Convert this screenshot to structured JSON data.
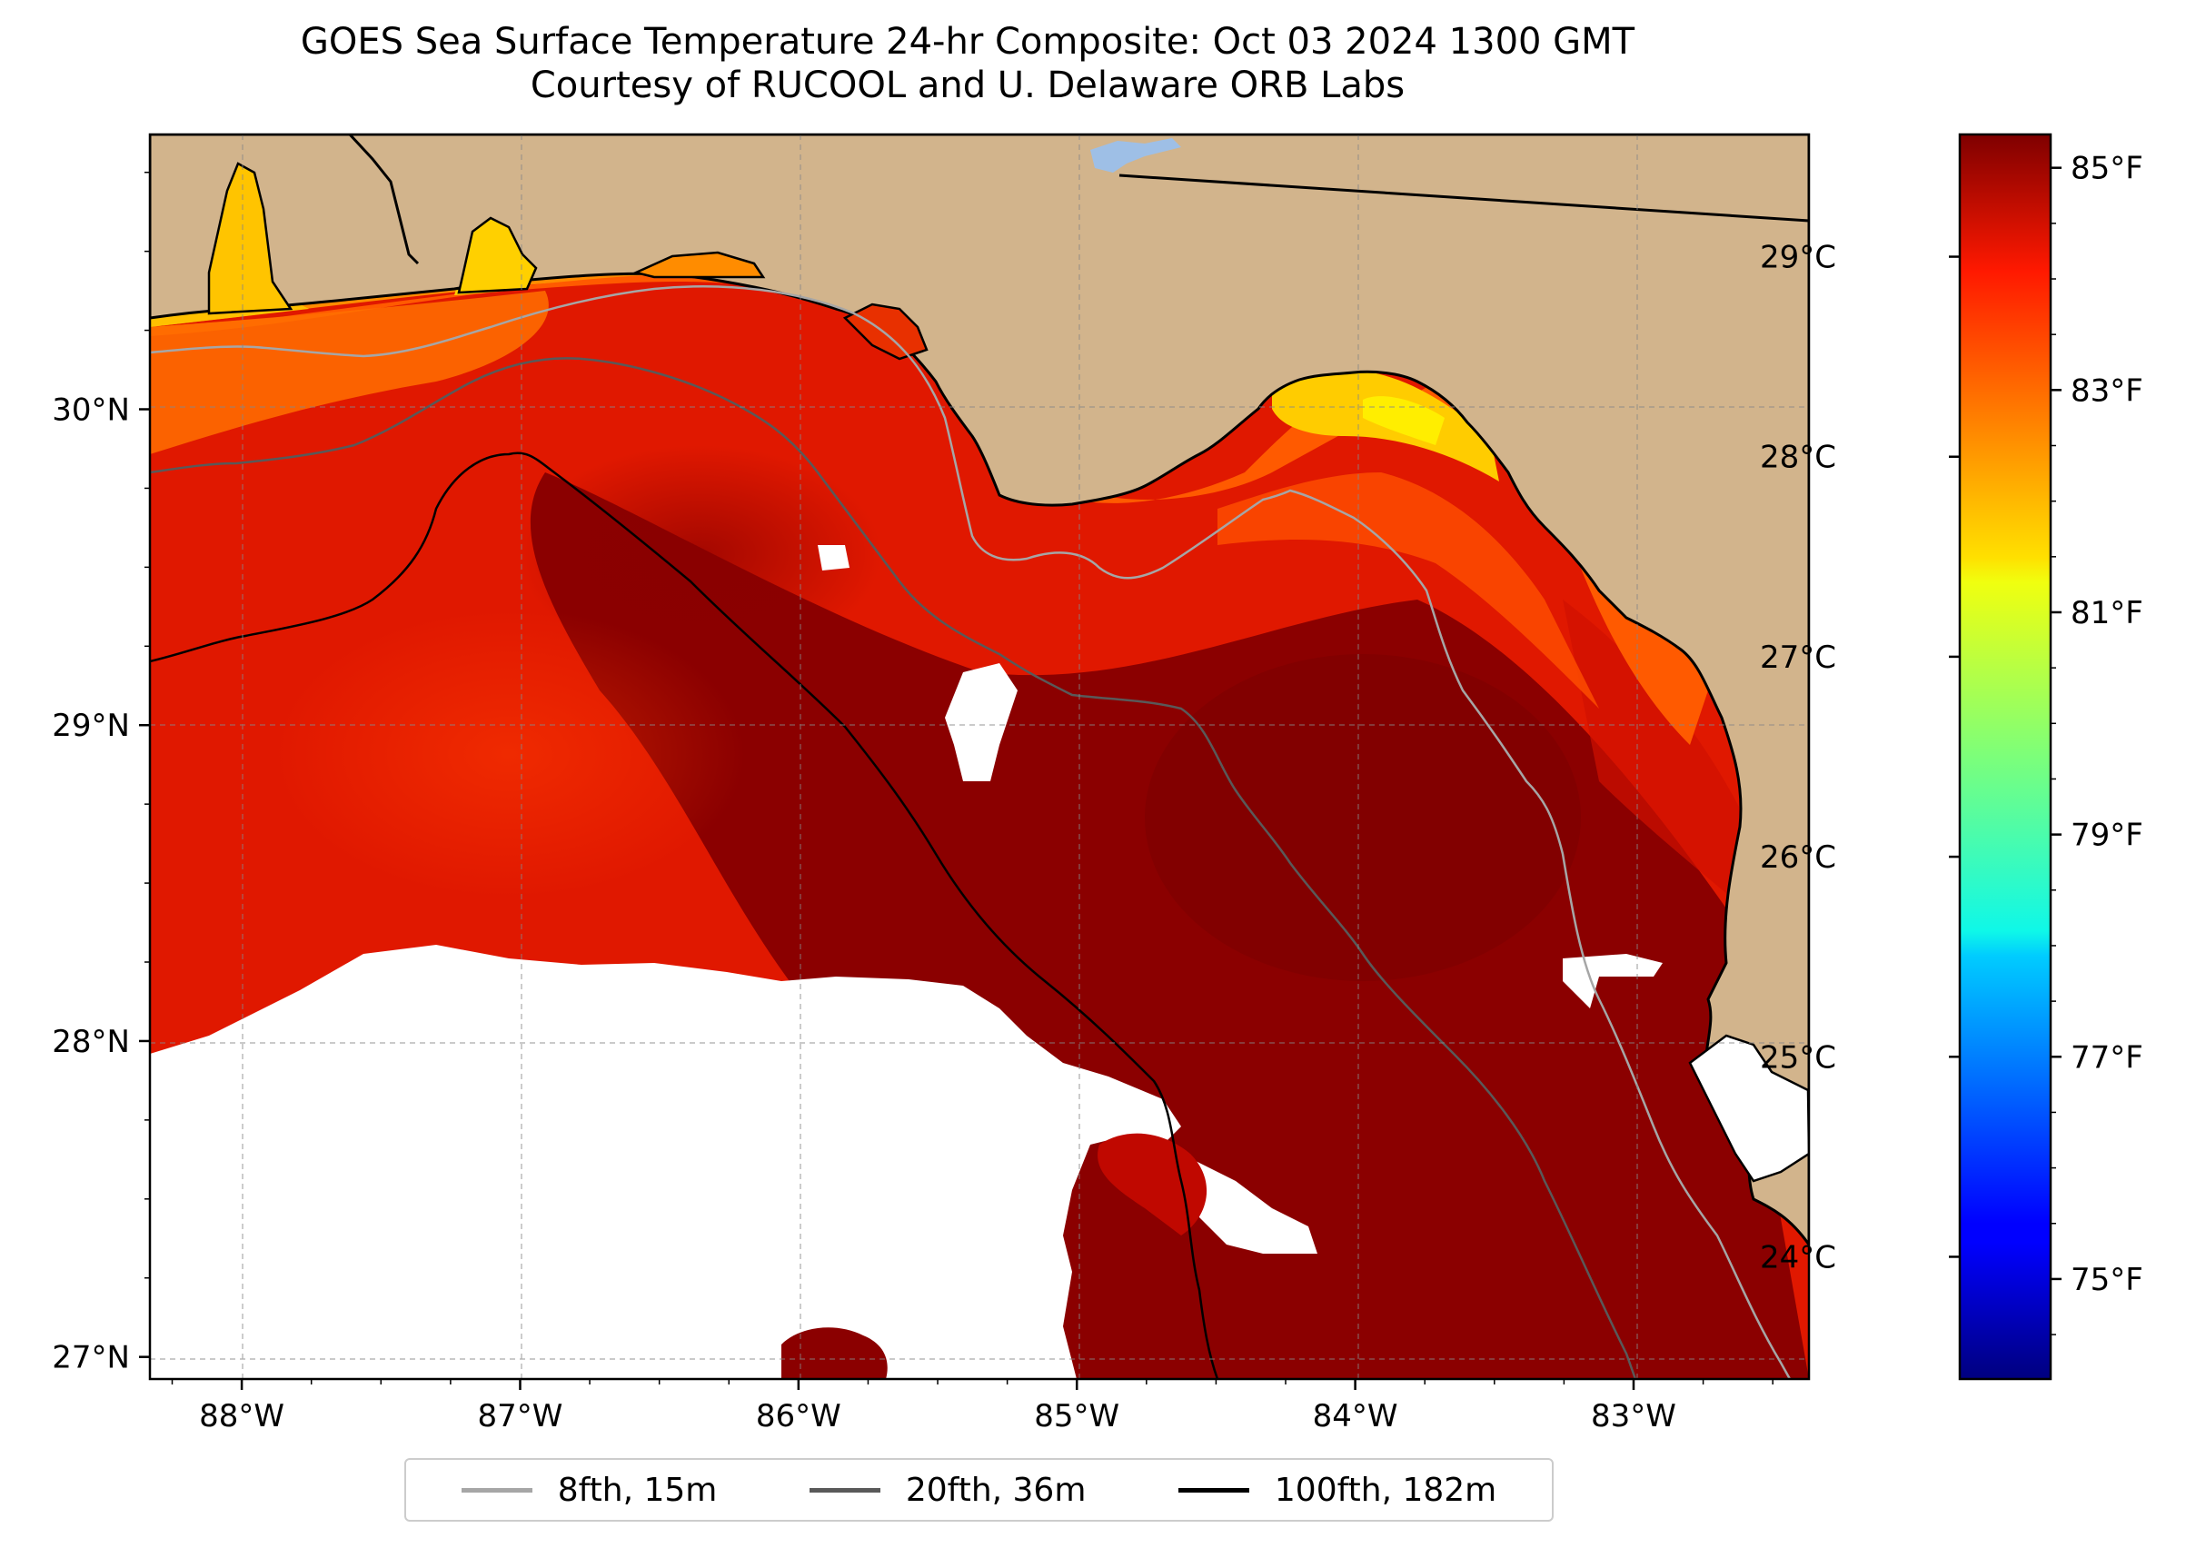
{
  "title": {
    "line1": "GOES Sea Surface Temperature 24-hr Composite: Oct 03 2024 1300 GMT",
    "line2": "Courtesy of RUCOOL and U. Delaware ORB Labs"
  },
  "map": {
    "lon_range": [
      -88.33,
      -82.37
    ],
    "lat_range": [
      26.93,
      30.87
    ],
    "land_color": "#d2b48c",
    "no_data_color": "#ffffff",
    "lake_color": "#9ebfe6"
  },
  "x_axis": {
    "ticks": [
      {
        "value": -88,
        "label": "88°W"
      },
      {
        "value": -87,
        "label": "87°W"
      },
      {
        "value": -86,
        "label": "86°W"
      },
      {
        "value": -85,
        "label": "85°W"
      },
      {
        "value": -84,
        "label": "84°W"
      },
      {
        "value": -83,
        "label": "83°W"
      }
    ]
  },
  "y_axis": {
    "ticks": [
      {
        "value": 30,
        "label": "30°N"
      },
      {
        "value": 29,
        "label": "29°N"
      },
      {
        "value": 28,
        "label": "28°N"
      },
      {
        "value": 27,
        "label": "27°N"
      }
    ]
  },
  "colorbar": {
    "colormap": "jet",
    "range_f": [
      74.1,
      85.3
    ],
    "fahrenheit_ticks": [
      {
        "value": 85,
        "label": "85°F"
      },
      {
        "value": 83,
        "label": "83°F"
      },
      {
        "value": 81,
        "label": "81°F"
      },
      {
        "value": 79,
        "label": "79°F"
      },
      {
        "value": 77,
        "label": "77°F"
      },
      {
        "value": 75,
        "label": "75°F"
      }
    ],
    "celsius_ticks": [
      {
        "value": 29,
        "label": "29°C"
      },
      {
        "value": 28,
        "label": "28°C"
      },
      {
        "value": 27,
        "label": "27°C"
      },
      {
        "value": 26,
        "label": "26°C"
      },
      {
        "value": 25,
        "label": "25°C"
      },
      {
        "value": 24,
        "label": "24°C"
      }
    ]
  },
  "legend": {
    "items": [
      {
        "label": "8fth, 15m",
        "color": "#a6a6a6"
      },
      {
        "label": "20fth, 36m",
        "color": "#595959"
      },
      {
        "label": "100fth, 182m",
        "color": "#000000"
      }
    ]
  }
}
